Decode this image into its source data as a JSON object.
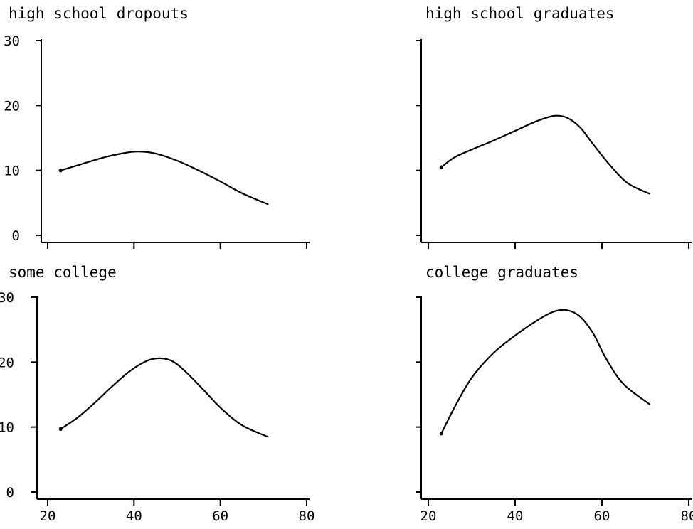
{
  "chart_data": [
    {
      "type": "line",
      "title": "high school dropouts",
      "xlabel": "",
      "ylabel": "",
      "xlim": [
        20,
        80
      ],
      "ylim": [
        0,
        30
      ],
      "show_y_tick_labels": true,
      "show_x_tick_labels": false,
      "series": [
        {
          "x": [
            23,
            28,
            33,
            38,
            41,
            45,
            50,
            55,
            60,
            65,
            71
          ],
          "y": [
            10.0,
            11.0,
            12.0,
            12.7,
            12.9,
            12.6,
            11.5,
            10.0,
            8.3,
            6.5,
            4.8
          ]
        }
      ]
    },
    {
      "type": "line",
      "title": "high school graduates",
      "xlabel": "",
      "ylabel": "",
      "xlim": [
        20,
        80
      ],
      "ylim": [
        0,
        30
      ],
      "show_y_tick_labels": false,
      "show_x_tick_labels": false,
      "series": [
        {
          "x": [
            23,
            26,
            30,
            35,
            40,
            45,
            49,
            52,
            55,
            58,
            62,
            66,
            71
          ],
          "y": [
            10.5,
            12.0,
            13.2,
            14.6,
            16.1,
            17.6,
            18.4,
            18.1,
            16.6,
            14.0,
            10.7,
            8.0,
            6.4
          ]
        }
      ]
    },
    {
      "type": "line",
      "title": "some college",
      "xlabel": "",
      "ylabel": "",
      "xlim": [
        20,
        80
      ],
      "ylim": [
        0,
        30
      ],
      "show_y_tick_labels": true,
      "show_x_tick_labels": true,
      "x_tick_labels": [
        "20",
        "40",
        "60",
        "80"
      ],
      "series": [
        {
          "x": [
            23,
            27,
            31,
            35,
            39,
            43,
            46,
            49,
            52,
            56,
            60,
            65,
            71
          ],
          "y": [
            9.7,
            11.5,
            13.8,
            16.3,
            18.6,
            20.2,
            20.6,
            20.1,
            18.5,
            15.8,
            13.0,
            10.3,
            8.5
          ]
        }
      ]
    },
    {
      "type": "line",
      "title": "college graduates",
      "xlabel": "",
      "ylabel": "",
      "xlim": [
        20,
        80
      ],
      "ylim": [
        0,
        30
      ],
      "show_y_tick_labels": false,
      "show_x_tick_labels": true,
      "x_tick_labels": [
        "20",
        "40",
        "60",
        "80"
      ],
      "series": [
        {
          "x": [
            23,
            26,
            30,
            35,
            40,
            45,
            49,
            52,
            55,
            58,
            61,
            65,
            71
          ],
          "y": [
            9.0,
            13.0,
            17.6,
            21.4,
            24.1,
            26.4,
            27.8,
            28.0,
            27.0,
            24.4,
            20.5,
            16.6,
            13.5
          ]
        }
      ]
    }
  ],
  "y_ticks": [
    "0",
    "10",
    "20",
    "30"
  ]
}
